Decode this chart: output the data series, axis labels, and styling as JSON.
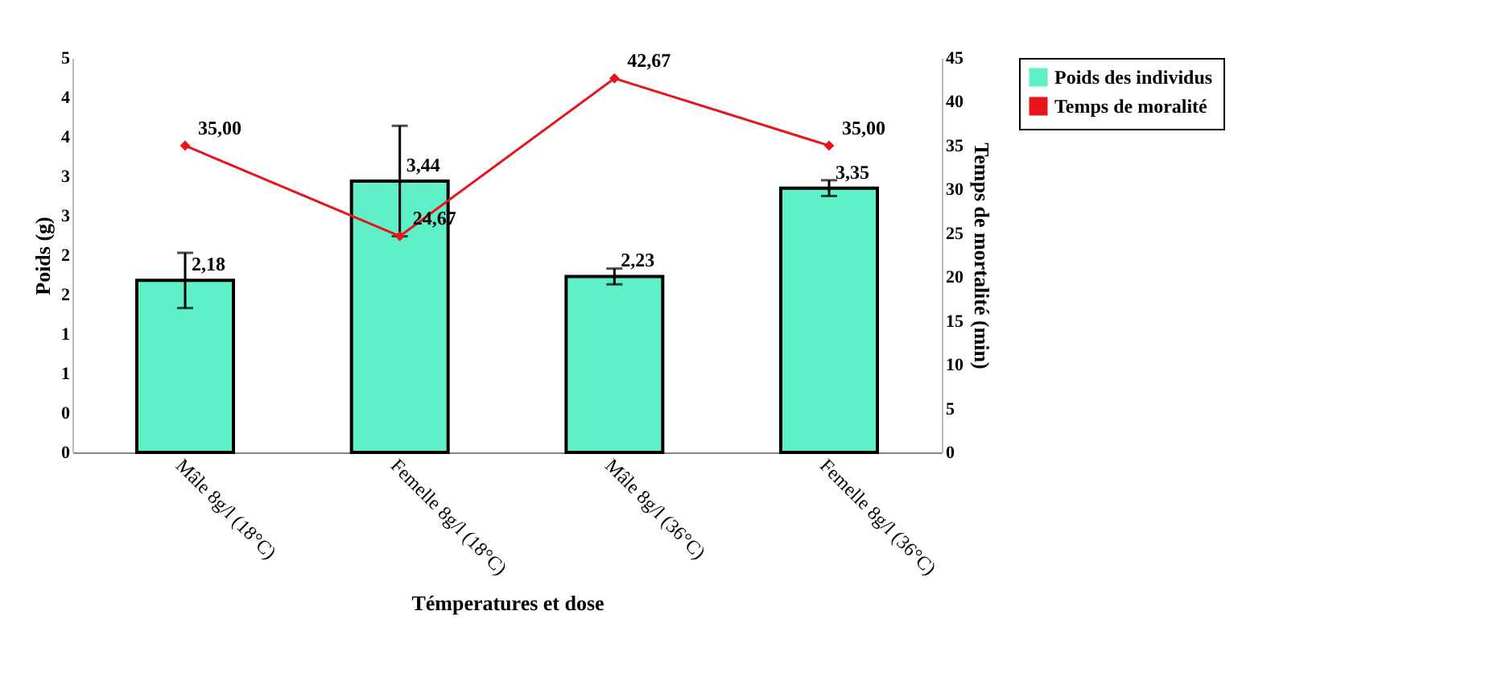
{
  "chart_data": {
    "type": "bar",
    "xlabel": "Témperatures et dose",
    "ylabel": "Poids (g)",
    "y2label": "Temps de mortalité (min)",
    "categories": [
      "Mâle 8g/l (18°C)",
      "Femelle 8g/l (18°C)",
      "Mâle 8g/l (36°C)",
      "Femelle 8g/l (36°C)"
    ],
    "series": [
      {
        "name": "Poids des individus",
        "type": "bar",
        "color": "#5ff0c8",
        "values": [
          2.18,
          3.44,
          2.23,
          3.35
        ],
        "errors": [
          0.35,
          0.7,
          0.1,
          0.1
        ],
        "value_labels": [
          "2,18",
          "3,44",
          "2,23",
          "3,35"
        ]
      },
      {
        "name": "Temps de moralité",
        "type": "line",
        "axis": "y2",
        "color": "#e8141c",
        "marker": "diamond",
        "values": [
          35,
          24.67,
          42.67,
          35
        ],
        "value_labels": [
          "35,00",
          "24,67",
          "42,67",
          "35,00"
        ]
      }
    ],
    "ylim": [
      0,
      5
    ],
    "yticks": [
      {
        "value": 0,
        "label": "0"
      },
      {
        "value": 0.5,
        "label": "0"
      },
      {
        "value": 1,
        "label": "1"
      },
      {
        "value": 1.5,
        "label": "1"
      },
      {
        "value": 2,
        "label": "2"
      },
      {
        "value": 2.5,
        "label": "2"
      },
      {
        "value": 3,
        "label": "3"
      },
      {
        "value": 3.5,
        "label": "3"
      },
      {
        "value": 4,
        "label": "4"
      },
      {
        "value": 4.5,
        "label": "4"
      },
      {
        "value": 5,
        "label": "5"
      }
    ],
    "y2lim": [
      0,
      45
    ],
    "y2ticks": [
      0,
      5,
      10,
      15,
      20,
      25,
      30,
      35,
      40,
      45
    ],
    "legend": "right",
    "grid": false
  }
}
